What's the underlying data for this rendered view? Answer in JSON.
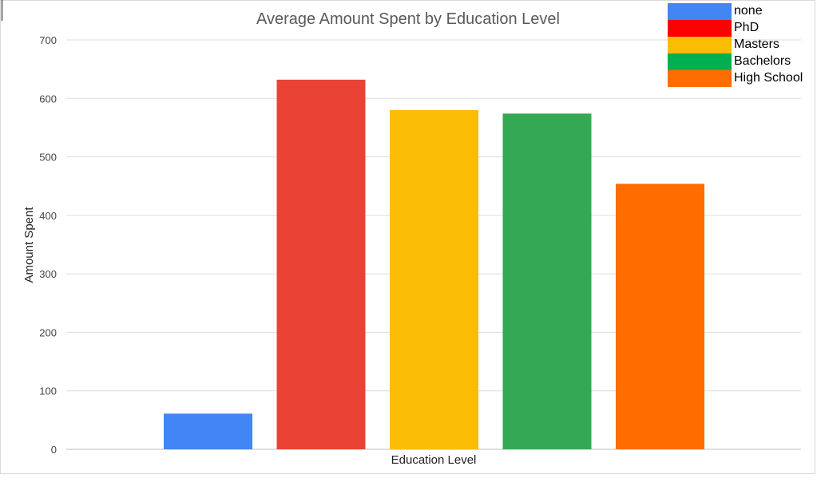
{
  "chart_data": {
    "type": "bar",
    "title": "Average Amount Spent by Education Level",
    "xlabel": "Education Level",
    "ylabel": "Amount Spent",
    "ylim": [
      0,
      700
    ],
    "yticks": [
      0,
      100,
      200,
      300,
      400,
      500,
      600,
      700
    ],
    "grid": true,
    "legend_position": "top-right",
    "categories": [
      "none",
      "PhD",
      "Masters",
      "Bachelors",
      "High School"
    ],
    "values": [
      61,
      632,
      580,
      574,
      454
    ],
    "bar_colors": [
      "#4285f4",
      "#ea4335",
      "#fbbc04",
      "#34a853",
      "#ff6d01"
    ],
    "legend": [
      {
        "label": "none",
        "color": "#4285f4"
      },
      {
        "label": "PhD",
        "color": "#ff0000"
      },
      {
        "label": "Masters",
        "color": "#fbbc04"
      },
      {
        "label": "Bachelors",
        "color": "#00b050"
      },
      {
        "label": "High School",
        "color": "#ff6d01"
      }
    ]
  }
}
